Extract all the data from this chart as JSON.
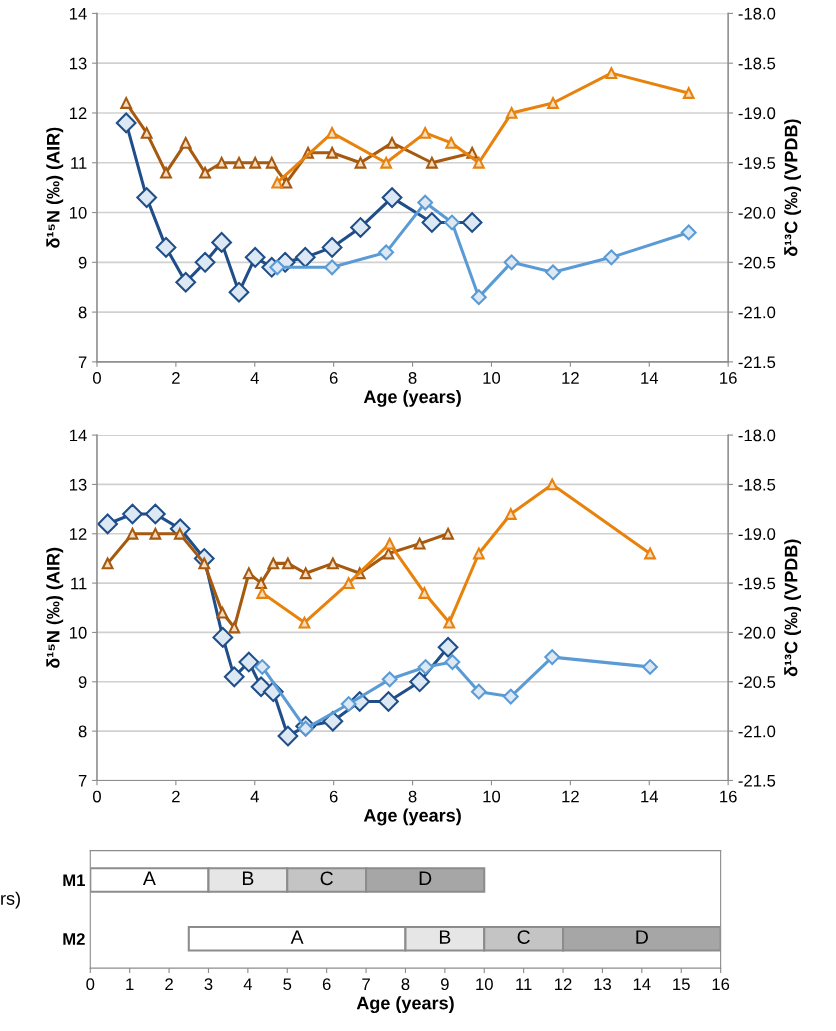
{
  "chart_data": [
    {
      "type": "line",
      "xlabel": "Age (years)",
      "ylabel": "δ¹⁵N (‰) (AIR)",
      "y2label": "δ¹³C (‰) (VPDB)",
      "xlim": [
        0,
        16
      ],
      "xticks": [
        0,
        2,
        4,
        6,
        8,
        10,
        12,
        14,
        16
      ],
      "ylim": [
        7,
        14
      ],
      "yticks": [
        7,
        8,
        9,
        10,
        11,
        12,
        13,
        14
      ],
      "y2lim": [
        -21.5,
        -18
      ],
      "y2ticks": [
        {
          "value": -21.5,
          "label": "-21.5"
        },
        {
          "value": -21,
          "label": "-21.0"
        },
        {
          "value": -20.5,
          "label": "-20.5"
        },
        {
          "value": -20,
          "label": "-20.0"
        },
        {
          "value": -19.5,
          "label": "-19.5"
        },
        {
          "value": -19,
          "label": "-19.0"
        },
        {
          "value": -18.5,
          "label": "-18.5"
        },
        {
          "value": -18,
          "label": "-18.0"
        }
      ],
      "grid": "y",
      "series": [
        {
          "color": "#1f4e89",
          "marker": "diamond",
          "x": [
            0.74,
            1.26,
            1.75,
            2.25,
            2.74,
            3.16,
            3.6,
            4.01,
            4.43,
            4.77,
            5.28,
            5.96,
            6.68,
            7.48,
            8.49,
            9.51
          ],
          "values": [
            11.8,
            10.3,
            9.3,
            8.6,
            9.0,
            9.4,
            8.4,
            9.1,
            8.9,
            9.0,
            9.1,
            9.3,
            9.7,
            10.3,
            9.8,
            9.8
          ]
        },
        {
          "color": "#5b9bd5",
          "marker": "diamond",
          "x": [
            4.57,
            5.96,
            7.33,
            8.32,
            9.0,
            9.68,
            10.51,
            11.56,
            13.04,
            15.0
          ],
          "values": [
            8.9,
            8.9,
            9.2,
            10.2,
            9.8,
            8.3,
            9.0,
            8.8,
            9.1,
            9.6
          ]
        },
        {
          "color": "#a65a10",
          "marker": "triangle",
          "axis": "y2",
          "x": [
            0.74,
            1.26,
            1.75,
            2.25,
            2.74,
            3.16,
            3.6,
            4.01,
            4.43,
            4.8,
            5.35,
            5.96,
            6.68,
            7.48,
            8.49,
            9.51
          ],
          "values": [
            -18.9,
            -19.2,
            -19.6,
            -19.3,
            -19.6,
            -19.5,
            -19.5,
            -19.5,
            -19.5,
            -19.7,
            -19.4,
            -19.4,
            -19.5,
            -19.3,
            -19.5,
            -19.4
          ]
        },
        {
          "color": "#e8820c",
          "marker": "triangle",
          "axis": "y2",
          "x": [
            4.57,
            5.96,
            7.33,
            8.32,
            8.98,
            9.68,
            10.51,
            11.56,
            13.04,
            15.0
          ],
          "values": [
            -19.7,
            -19.2,
            -19.5,
            -19.2,
            -19.3,
            -19.5,
            -19.0,
            -18.9,
            -18.6,
            -18.8
          ]
        }
      ]
    },
    {
      "type": "line",
      "xlabel": "Age (years)",
      "ylabel": "δ¹⁵N (‰) (AIR)",
      "y2label": "δ¹³C (‰) (VPDB)",
      "xlim": [
        0,
        16
      ],
      "xticks": [
        0,
        2,
        4,
        6,
        8,
        10,
        12,
        14,
        16
      ],
      "ylim": [
        7,
        14
      ],
      "yticks": [
        7,
        8,
        9,
        10,
        11,
        12,
        13,
        14
      ],
      "y2lim": [
        -21.5,
        -18
      ],
      "y2ticks": [
        {
          "value": -21.5,
          "label": "-21.5"
        },
        {
          "value": -21,
          "label": "-21.0"
        },
        {
          "value": -20.5,
          "label": "-20.5"
        },
        {
          "value": -20,
          "label": "-20.0"
        },
        {
          "value": -19.5,
          "label": "-19.5"
        },
        {
          "value": -19,
          "label": "-19.0"
        },
        {
          "value": -18.5,
          "label": "-18.5"
        },
        {
          "value": -18,
          "label": "-18.0"
        }
      ],
      "grid": "y",
      "series": [
        {
          "color": "#1f4e89",
          "marker": "diamond",
          "x": [
            0.27,
            0.9,
            1.48,
            2.11,
            2.72,
            3.19,
            3.48,
            3.85,
            4.16,
            4.47,
            4.84,
            5.29,
            5.98,
            6.66,
            7.39,
            8.18,
            8.9
          ],
          "values": [
            12.2,
            12.4,
            12.4,
            12.1,
            11.5,
            9.9,
            9.1,
            9.4,
            8.9,
            8.8,
            7.9,
            8.1,
            8.2,
            8.6,
            8.6,
            9.0,
            9.7
          ]
        },
        {
          "color": "#5b9bd5",
          "marker": "diamond",
          "x": [
            4.19,
            5.29,
            6.38,
            7.42,
            8.33,
            9.01,
            9.68,
            10.49,
            11.54,
            14.02
          ],
          "values": [
            9.3,
            8.05,
            8.55,
            9.05,
            9.3,
            9.4,
            8.8,
            8.7,
            9.5,
            9.3
          ]
        },
        {
          "color": "#a65a10",
          "marker": "triangle",
          "axis": "y2",
          "x": [
            0.27,
            0.9,
            1.48,
            2.1,
            2.72,
            3.18,
            3.48,
            3.85,
            4.16,
            4.47,
            4.84,
            5.29,
            5.98,
            6.66,
            7.39,
            8.18,
            8.9
          ],
          "values": [
            -19.3,
            -19.0,
            -19.0,
            -19.0,
            -19.3,
            -19.8,
            -19.95,
            -19.4,
            -19.5,
            -19.3,
            -19.3,
            -19.4,
            -19.3,
            -19.4,
            -19.2,
            -19.1,
            -19.0
          ]
        },
        {
          "color": "#e8820c",
          "marker": "triangle",
          "axis": "y2",
          "x": [
            4.19,
            5.26,
            6.38,
            7.42,
            8.3,
            8.93,
            9.68,
            10.49,
            11.54,
            14.02
          ],
          "values": [
            -19.6,
            -19.9,
            -19.5,
            -19.1,
            -19.6,
            -19.9,
            -19.2,
            -18.8,
            -18.5,
            -19.2
          ]
        }
      ]
    },
    {
      "type": "bar",
      "orientation": "horizontal",
      "categories": [
        "M1",
        "M2"
      ],
      "xlabel": "Age (years)",
      "xlim": [
        0,
        16
      ],
      "xticks": [
        0,
        1,
        2,
        3,
        4,
        5,
        6,
        7,
        8,
        9,
        10,
        11,
        12,
        13,
        14,
        15,
        16
      ],
      "annotations": [
        "rs)"
      ],
      "series": [
        {
          "color": "#ffffff",
          "base": [
            0,
            2.5
          ],
          "values": [
            3,
            5.5
          ],
          "value_labels": [
            "A",
            "A"
          ]
        },
        {
          "color": "#e6e6e6",
          "base": [
            3,
            8
          ],
          "values": [
            2,
            2
          ],
          "value_labels": [
            "B",
            "B"
          ]
        },
        {
          "color": "#c4c4c4",
          "base": [
            5,
            10
          ],
          "values": [
            2,
            2
          ],
          "value_labels": [
            "C",
            "C"
          ]
        },
        {
          "color": "#a6a6a6",
          "base": [
            7,
            12
          ],
          "values": [
            3,
            4
          ],
          "value_labels": [
            "D",
            "D"
          ]
        }
      ]
    }
  ]
}
